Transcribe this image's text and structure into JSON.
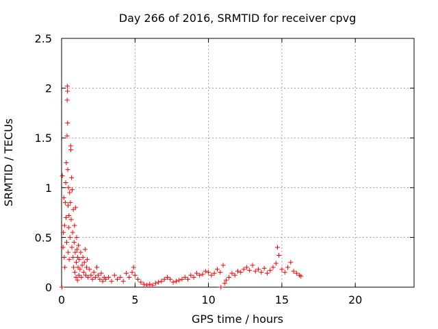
{
  "chart_data": {
    "type": "scatter",
    "title": "Day 266 of 2016, SRMTID for receiver cpvg",
    "xlabel": "GPS time / hours",
    "ylabel": "SRMTID / TECUs",
    "xlim": [
      0,
      24
    ],
    "ylim": [
      0,
      2.5
    ],
    "xticks": [
      0,
      5,
      10,
      15,
      20
    ],
    "xtick_labels": [
      "0",
      "5",
      "10",
      "15",
      "20"
    ],
    "yticks": [
      0,
      0.5,
      1,
      1.5,
      2,
      2.5
    ],
    "ytick_labels": [
      "0",
      "0.5",
      "1",
      "1.5",
      "2",
      "2.5"
    ],
    "grid": true,
    "marker": "+",
    "color": "#ff0000",
    "series": [
      {
        "name": "SRMTID",
        "points": [
          [
            0.02,
            0.0
          ],
          [
            0.05,
            1.12
          ],
          [
            0.1,
            0.4
          ],
          [
            0.12,
            0.55
          ],
          [
            0.15,
            0.9
          ],
          [
            0.18,
            0.3
          ],
          [
            0.2,
            0.62
          ],
          [
            0.22,
            0.2
          ],
          [
            0.25,
            0.85
          ],
          [
            0.28,
            1.05
          ],
          [
            0.3,
            0.7
          ],
          [
            0.32,
            1.25
          ],
          [
            0.35,
            0.45
          ],
          [
            0.37,
            1.52
          ],
          [
            0.38,
            1.88
          ],
          [
            0.39,
            2.02
          ],
          [
            0.4,
            1.97
          ],
          [
            0.41,
            1.65
          ],
          [
            0.42,
            1.18
          ],
          [
            0.44,
            0.82
          ],
          [
            0.45,
            0.35
          ],
          [
            0.47,
            1.0
          ],
          [
            0.48,
            0.6
          ],
          [
            0.5,
            0.72
          ],
          [
            0.52,
            0.28
          ],
          [
            0.55,
            0.95
          ],
          [
            0.57,
            0.5
          ],
          [
            0.6,
            0.85
          ],
          [
            0.62,
            1.42
          ],
          [
            0.63,
            1.38
          ],
          [
            0.65,
            0.68
          ],
          [
            0.68,
            1.1
          ],
          [
            0.7,
            0.4
          ],
          [
            0.72,
            0.98
          ],
          [
            0.75,
            0.55
          ],
          [
            0.78,
            0.3
          ],
          [
            0.8,
            0.78
          ],
          [
            0.82,
            0.2
          ],
          [
            0.85,
            0.45
          ],
          [
            0.88,
            0.62
          ],
          [
            0.9,
            0.15
          ],
          [
            0.93,
            0.35
          ],
          [
            0.95,
            0.8
          ],
          [
            0.98,
            0.1
          ],
          [
            1.0,
            0.25
          ],
          [
            1.02,
            0.5
          ],
          [
            1.05,
            0.38
          ],
          [
            1.08,
            0.07
          ],
          [
            1.1,
            0.3
          ],
          [
            1.12,
            0.2
          ],
          [
            1.15,
            0.42
          ],
          [
            1.18,
            0.12
          ],
          [
            1.2,
            0.28
          ],
          [
            1.25,
            0.18
          ],
          [
            1.3,
            0.35
          ],
          [
            1.35,
            0.1
          ],
          [
            1.4,
            0.22
          ],
          [
            1.45,
            0.3
          ],
          [
            1.5,
            0.15
          ],
          [
            1.55,
            0.25
          ],
          [
            1.6,
            0.38
          ],
          [
            1.65,
            0.12
          ],
          [
            1.7,
            0.2
          ],
          [
            1.75,
            0.28
          ],
          [
            1.8,
            0.1
          ],
          [
            1.9,
            0.18
          ],
          [
            2.0,
            0.12
          ],
          [
            2.1,
            0.08
          ],
          [
            2.2,
            0.15
          ],
          [
            2.3,
            0.1
          ],
          [
            2.4,
            0.2
          ],
          [
            2.5,
            0.12
          ],
          [
            2.6,
            0.08
          ],
          [
            2.7,
            0.14
          ],
          [
            2.8,
            0.06
          ],
          [
            2.9,
            0.1
          ],
          [
            3.0,
            0.08
          ],
          [
            3.2,
            0.1
          ],
          [
            3.4,
            0.06
          ],
          [
            3.6,
            0.12
          ],
          [
            3.8,
            0.08
          ],
          [
            4.0,
            0.1
          ],
          [
            4.2,
            0.06
          ],
          [
            4.4,
            0.14
          ],
          [
            4.6,
            0.1
          ],
          [
            4.8,
            0.15
          ],
          [
            4.9,
            0.2
          ],
          [
            5.0,
            0.12
          ],
          [
            5.2,
            0.08
          ],
          [
            5.4,
            0.05
          ],
          [
            5.6,
            0.03
          ],
          [
            5.8,
            0.02
          ],
          [
            6.0,
            0.03
          ],
          [
            6.2,
            0.02
          ],
          [
            6.4,
            0.04
          ],
          [
            6.6,
            0.05
          ],
          [
            6.8,
            0.06
          ],
          [
            7.0,
            0.08
          ],
          [
            7.2,
            0.1
          ],
          [
            7.4,
            0.08
          ],
          [
            7.6,
            0.05
          ],
          [
            7.8,
            0.06
          ],
          [
            8.0,
            0.07
          ],
          [
            8.2,
            0.08
          ],
          [
            8.4,
            0.1
          ],
          [
            8.6,
            0.08
          ],
          [
            8.8,
            0.12
          ],
          [
            9.0,
            0.1
          ],
          [
            9.2,
            0.14
          ],
          [
            9.4,
            0.12
          ],
          [
            9.6,
            0.13
          ],
          [
            9.8,
            0.16
          ],
          [
            10.0,
            0.15
          ],
          [
            10.2,
            0.12
          ],
          [
            10.4,
            0.14
          ],
          [
            10.6,
            0.18
          ],
          [
            10.8,
            0.15
          ],
          [
            10.85,
            0.0
          ],
          [
            11.0,
            0.22
          ],
          [
            11.1,
            0.04
          ],
          [
            11.2,
            0.07
          ],
          [
            11.4,
            0.1
          ],
          [
            11.6,
            0.14
          ],
          [
            11.8,
            0.12
          ],
          [
            12.0,
            0.16
          ],
          [
            12.2,
            0.15
          ],
          [
            12.4,
            0.18
          ],
          [
            12.6,
            0.2
          ],
          [
            12.8,
            0.17
          ],
          [
            13.0,
            0.22
          ],
          [
            13.2,
            0.16
          ],
          [
            13.4,
            0.18
          ],
          [
            13.6,
            0.15
          ],
          [
            13.8,
            0.19
          ],
          [
            14.0,
            0.14
          ],
          [
            14.2,
            0.17
          ],
          [
            14.4,
            0.2
          ],
          [
            14.6,
            0.24
          ],
          [
            14.7,
            0.4
          ],
          [
            14.8,
            0.32
          ],
          [
            15.0,
            0.18
          ],
          [
            15.2,
            0.15
          ],
          [
            15.4,
            0.2
          ],
          [
            15.6,
            0.25
          ],
          [
            15.8,
            0.16
          ],
          [
            16.0,
            0.14
          ],
          [
            16.2,
            0.12
          ],
          [
            16.3,
            0.11
          ]
        ]
      }
    ]
  }
}
